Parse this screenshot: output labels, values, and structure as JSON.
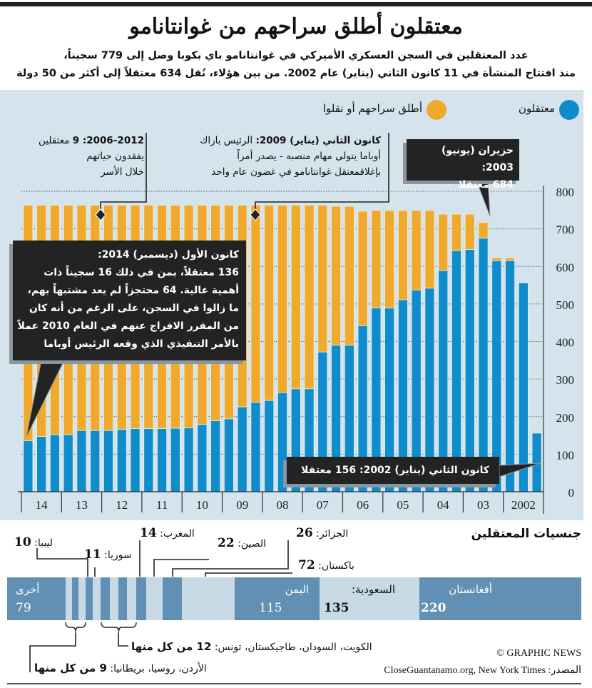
{
  "header": {
    "title": "معتقلون أطلق سراحهم من غوانتانامو",
    "subtitle_lines": [
      "عدد المعتقلين في السجن العسكري الأميركي في غوانتانامو باي بكوبا وصل إلى 779 سجيناً،",
      "منذ افتتاح المنشأة في 11 كانون الثاني (يناير) عام 2002. من بين هؤلاء، نُقل 634 معتقلاً إلى أكثر من 50 دولة"
    ]
  },
  "legend": {
    "detained": "معتقلون",
    "released": "أطلق سراحهم أو نقلوا"
  },
  "colors": {
    "detained": "#0e8ccc",
    "released": "#efaa2d",
    "panel_bg": "#d5e3ec",
    "segment_dark": "#6190b4",
    "segment_light": "#c6d9e5",
    "callout_bg": "#232323"
  },
  "annotations": {
    "deaths": {
      "bold": "2006-2012: 9",
      "lines": [
        "معتقلين",
        "يفقدون حياتهم",
        "خلال الأسر"
      ]
    },
    "obama": {
      "bold": "كانون الثاني (يناير) 2009:",
      "lines": [
        "الرئيس باراك",
        "أوباما يتولى مهام منصبه - يصدر أمراً",
        "بإغلاقمعتقل غوانتانامو في غضون عام واحد"
      ]
    },
    "peak": {
      "lines": [
        "حزيران (يونيو) 2003:",
        "684 معتقلا"
      ]
    },
    "dec2014": {
      "lines": [
        "كانون الأول (ديسمبر) 2014:",
        "136 معتقلاً، بمن في ذلك 16 سجيناً ذات",
        "أهمية عالية. 64 محتجزاً لم يعد مشتبهاً بهم،",
        "ما زالوا في السجن، على الرغم من أنه كان",
        "من المقرر الافراج عنهم في العام 2010 عملاً",
        "بالأمر التنفيذي الذي وقعه الرئيس أوباما"
      ]
    },
    "jan2002": {
      "text": "كانون الثاني (يناير) 2002: 156 معتقلا"
    }
  },
  "chart_data": {
    "type": "bar",
    "stacked": true,
    "x_tick_labels": [
      "14",
      "13",
      "12",
      "11",
      "10",
      "09",
      "08",
      "07",
      "06",
      "05",
      "04",
      "03",
      "2002"
    ],
    "bars_per_tick": 3,
    "ylim": [
      0,
      800
    ],
    "yticks": [
      0,
      100,
      200,
      300,
      400,
      500,
      600,
      700,
      800
    ],
    "grid": true,
    "legend_placement": "top",
    "series": [
      {
        "name": "معتقلون",
        "values": [
          136,
          147,
          152,
          152,
          163,
          163,
          163,
          166,
          168,
          168,
          168,
          169,
          170,
          179,
          189,
          194,
          226,
          238,
          243,
          264,
          274,
          274,
          372,
          390,
          390,
          442,
          489,
          489,
          511,
          537,
          542,
          589,
          642,
          645,
          675,
          615,
          615,
          556,
          156
        ]
      },
      {
        "name": "أطلق سراحهم أو نقلوا",
        "values": [
          627,
          616,
          611,
          611,
          600,
          600,
          600,
          597,
          595,
          595,
          595,
          594,
          593,
          584,
          574,
          569,
          537,
          525,
          520,
          499,
          489,
          489,
          391,
          370,
          370,
          305,
          260,
          260,
          238,
          212,
          207,
          150,
          97,
          94,
          42,
          8,
          8,
          0,
          0
        ]
      }
    ]
  },
  "nationalities": {
    "title": "جنسيات المعتقلين",
    "segments": [
      {
        "name": "أفغانستان",
        "value": 220,
        "tone": "dark"
      },
      {
        "name": "السعودية",
        "value": 135,
        "tone": "light"
      },
      {
        "name": "اليمن",
        "value": 115,
        "tone": "dark"
      },
      {
        "name": "باكستان",
        "value": 72,
        "tone": "light"
      },
      {
        "name": "الجزائر",
        "value": 26,
        "tone": "dark"
      },
      {
        "name": "الصين",
        "value": 22,
        "tone": "light"
      },
      {
        "name": "المغرب",
        "value": 14,
        "tone": "dark"
      },
      {
        "name": "تونس",
        "value": 12,
        "tone": "light"
      },
      {
        "name": "طاجيكستان",
        "value": 12,
        "tone": "dark"
      },
      {
        "name": "السودان",
        "value": 12,
        "tone": "light"
      },
      {
        "name": "الكويت",
        "value": 12,
        "tone": "dark"
      },
      {
        "name": "سوريا",
        "value": 11,
        "tone": "light"
      },
      {
        "name": "ليبيا",
        "value": 10,
        "tone": "dark"
      },
      {
        "name": "بريطانيا",
        "value": 9,
        "tone": "light"
      },
      {
        "name": "روسيا",
        "value": 9,
        "tone": "dark"
      },
      {
        "name": "الأردن",
        "value": 9,
        "tone": "light"
      },
      {
        "name": "أخرى",
        "value": 79,
        "tone": "dark"
      }
    ],
    "labels": {
      "afghanistan": {
        "name": "أفغانستان",
        "value": "220"
      },
      "saudi": {
        "name": "السعودية:",
        "value": "135"
      },
      "yemen": {
        "name": "اليمن",
        "value": "115"
      },
      "other": {
        "name": "أخرى",
        "value": "79"
      },
      "pakistan": {
        "name": "باكستان:",
        "value": "72"
      },
      "algeria": {
        "name": "الجزائر:",
        "value": "26"
      },
      "china": {
        "name": "الصين:",
        "value": "22"
      },
      "morocco": {
        "name": "المغرب:",
        "value": "14"
      },
      "syria": {
        "name": "سوريا:",
        "value": "11"
      },
      "libya": {
        "name": "ليبيا:",
        "value": "10"
      },
      "group12": {
        "name": "الكويت، السودان، طاجيكستان، تونس:",
        "value": "12 من كل منها"
      },
      "group9": {
        "name": "الأردن، روسيا، بريطانيا:",
        "value": "9 من كل منها"
      }
    }
  },
  "footer": {
    "credit": "© GRAPHIC NEWS",
    "source_label": "المصدر:",
    "source": "CloseGuantanamo.org, New York Times"
  }
}
